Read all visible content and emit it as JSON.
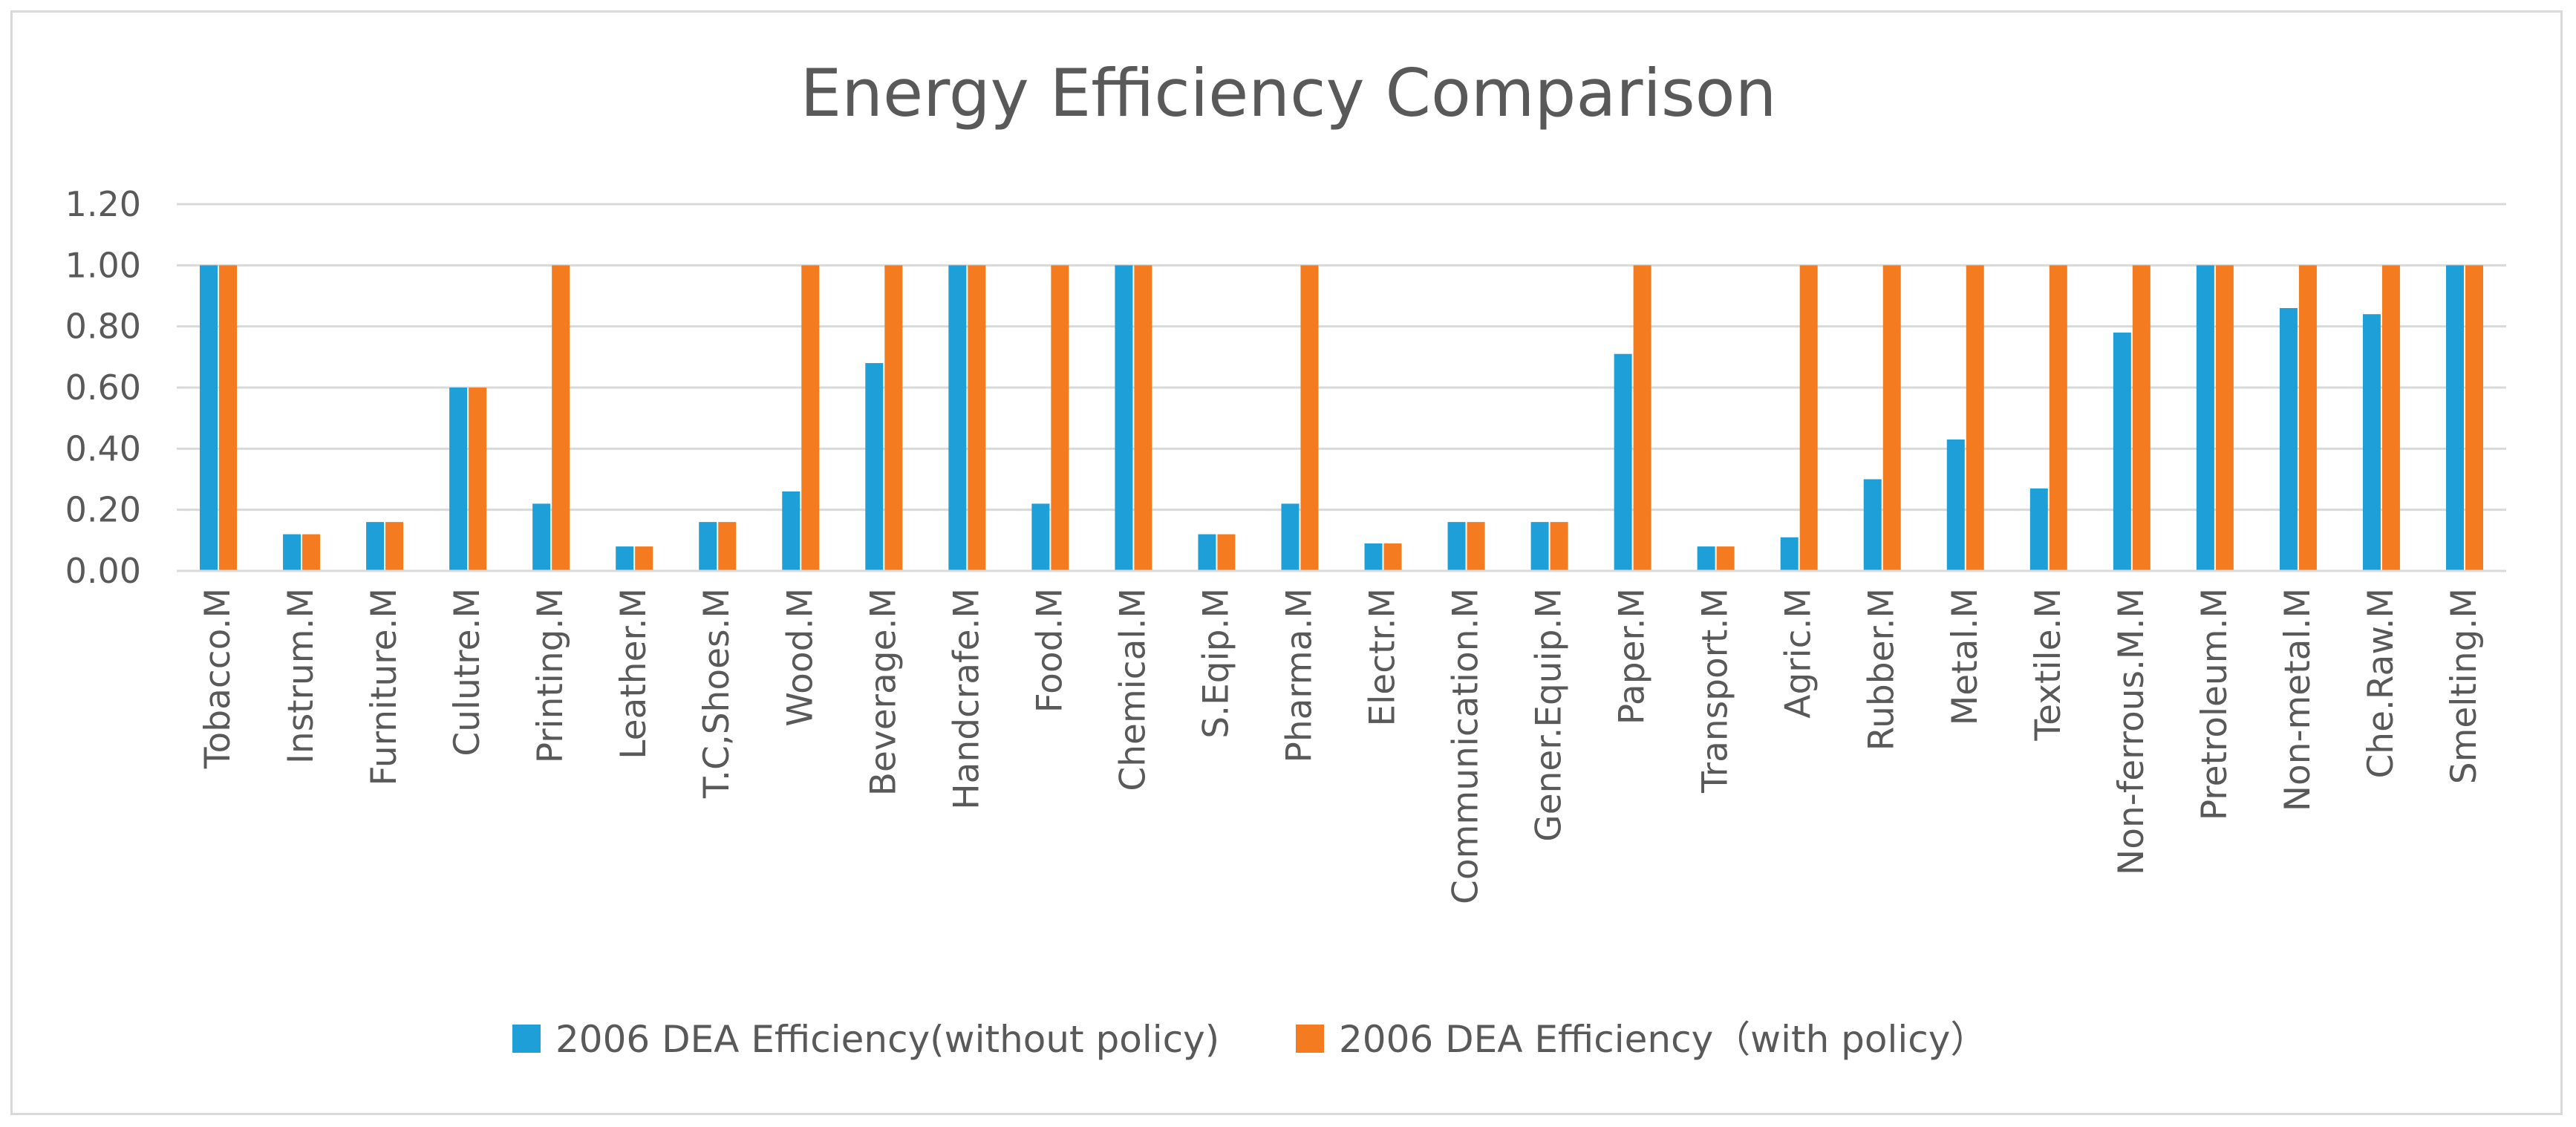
{
  "chart_data": {
    "type": "bar",
    "title": "Energy Efficiency Comparison",
    "xlabel": "",
    "ylabel": "",
    "ylim": [
      0,
      1.2
    ],
    "y_ticks": [
      "0.00",
      "0.20",
      "0.40",
      "0.60",
      "0.80",
      "1.00",
      "1.20"
    ],
    "grid": true,
    "legend_position": "bottom",
    "categories": [
      "Tobacco.M",
      "Instrum.M",
      "Furniture.M",
      "Culutre.M",
      "Printing.M",
      "Leather.M",
      "T.C,Shoes.M",
      "Wood.M",
      "Beverage.M",
      "Handcrafe.M",
      "Food.M",
      "Chemical.M",
      "S.Eqip.M",
      "Pharma.M",
      "Electr.M",
      "Communication.M",
      "Gener.Equip.M",
      "Paper.M",
      "Transport.M",
      "Agric.M",
      "Rubber.M",
      "Metal.M",
      "Textile.M",
      "Non-ferrous.M.M",
      "Pretroleum.M",
      "Non-metal.M",
      "Che.Raw.M",
      "Smelting.M"
    ],
    "series": [
      {
        "name": "2006 DEA Efficiency(without policy)",
        "color": "#1f9fd8",
        "values": [
          1.0,
          0.12,
          0.16,
          0.6,
          0.22,
          0.08,
          0.16,
          0.26,
          0.68,
          1.0,
          0.22,
          1.0,
          0.12,
          0.22,
          0.09,
          0.16,
          0.16,
          0.71,
          0.08,
          0.11,
          0.3,
          0.43,
          0.27,
          0.78,
          1.0,
          0.86,
          0.84,
          1.0
        ]
      },
      {
        "name": "2006 DEA Efficiency（with policy）",
        "color": "#f47b20",
        "values": [
          1.0,
          0.12,
          0.16,
          0.6,
          1.0,
          0.08,
          0.16,
          1.0,
          1.0,
          1.0,
          1.0,
          1.0,
          0.12,
          1.0,
          0.09,
          0.16,
          0.16,
          1.0,
          0.08,
          1.0,
          1.0,
          1.0,
          1.0,
          1.0,
          1.0,
          1.0,
          1.0,
          1.0
        ]
      }
    ]
  }
}
